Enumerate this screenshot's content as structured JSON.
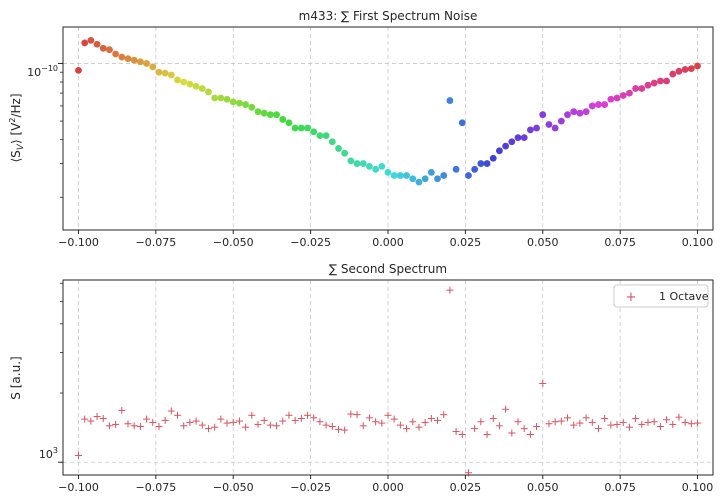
{
  "chart_data": [
    {
      "type": "scatter",
      "title": "m433: ∑ First Spectrum Noise",
      "xlabel": "",
      "ylabel": "⟨S_V⟩ [V²/Hz]",
      "ylabel_main": "⟨S",
      "ylabel_sub": "V",
      "ylabel_rest": "⟩ [V",
      "ylabel_sup": "2",
      "ylabel_end": "/Hz]",
      "yscale": "log",
      "xlim": [
        -0.105,
        0.105
      ],
      "ylim": [
        1.35e-11,
        1.55e-10
      ],
      "xticks": [
        -0.1,
        -0.075,
        -0.05,
        -0.025,
        0.0,
        0.025,
        0.05,
        0.075,
        0.1
      ],
      "xtick_labels": [
        "−0.100",
        "−0.075",
        "−0.050",
        "−0.025",
        "0.000",
        "0.025",
        "0.050",
        "0.075",
        "0.100"
      ],
      "ytick_major": {
        "value": 1e-10,
        "base": "10",
        "exponent": "−10"
      },
      "y_minor_ticks": [
        2e-11,
        3e-11,
        4e-11,
        5e-11,
        6e-11,
        7e-11,
        8e-11,
        9e-11
      ],
      "grid": true,
      "marker": "circle",
      "colormap": "hue rainbow by index (red → yellow → green → cyan → blue → magenta → red)",
      "x": [
        -0.1,
        -0.098,
        -0.096,
        -0.094,
        -0.092,
        -0.09,
        -0.088,
        -0.086,
        -0.084,
        -0.082,
        -0.08,
        -0.078,
        -0.076,
        -0.074,
        -0.072,
        -0.07,
        -0.068,
        -0.066,
        -0.064,
        -0.062,
        -0.06,
        -0.058,
        -0.056,
        -0.054,
        -0.052,
        -0.05,
        -0.048,
        -0.046,
        -0.044,
        -0.042,
        -0.04,
        -0.038,
        -0.036,
        -0.034,
        -0.032,
        -0.03,
        -0.028,
        -0.026,
        -0.024,
        -0.022,
        -0.02,
        -0.018,
        -0.016,
        -0.014,
        -0.012,
        -0.01,
        -0.008,
        -0.006,
        -0.004,
        -0.002,
        0.0,
        0.002,
        0.004,
        0.006,
        0.008,
        0.01,
        0.012,
        0.014,
        0.016,
        0.018,
        0.02,
        0.022,
        0.024,
        0.026,
        0.028,
        0.03,
        0.032,
        0.034,
        0.036,
        0.038,
        0.04,
        0.042,
        0.044,
        0.046,
        0.048,
        0.05,
        0.052,
        0.054,
        0.056,
        0.058,
        0.06,
        0.062,
        0.064,
        0.066,
        0.068,
        0.07,
        0.072,
        0.074,
        0.076,
        0.078,
        0.08,
        0.082,
        0.084,
        0.086,
        0.088,
        0.09,
        0.092,
        0.094,
        0.096,
        0.098,
        0.1
      ],
      "y": [
        9.2e-11,
        1.28e-10,
        1.32e-10,
        1.26e-10,
        1.2e-10,
        1.18e-10,
        1.12e-10,
        1.08e-10,
        1.06e-10,
        1.04e-10,
        1.02e-10,
        1e-10,
        9.6e-11,
        9e-11,
        8.9e-11,
        8.7e-11,
        8.2e-11,
        8e-11,
        7.8e-11,
        7.6e-11,
        7.4e-11,
        7.1e-11,
        6.6e-11,
        6.6e-11,
        6.5e-11,
        6.3e-11,
        6.2e-11,
        6.1e-11,
        5.9e-11,
        5.6e-11,
        5.5e-11,
        5.4e-11,
        5.4e-11,
        5.1e-11,
        4.9e-11,
        4.6e-11,
        4.6e-11,
        4.6e-11,
        4.4e-11,
        4.2e-11,
        4.2e-11,
        3.9e-11,
        3.6e-11,
        3.4e-11,
        3.1e-11,
        3e-11,
        3e-11,
        2.9e-11,
        2.8e-11,
        2.9e-11,
        2.7e-11,
        2.6e-11,
        2.6e-11,
        2.6e-11,
        2.5e-11,
        2.4e-11,
        2.5e-11,
        2.7e-11,
        2.5e-11,
        2.6e-11,
        6.4e-11,
        2.8e-11,
        4.9e-11,
        2.6e-11,
        2.8e-11,
        3e-11,
        3e-11,
        3.2e-11,
        3.5e-11,
        3.7e-11,
        3.9e-11,
        4.1e-11,
        4.1e-11,
        4.5e-11,
        4.6e-11,
        5.4e-11,
        4.8e-11,
        4.6e-11,
        5e-11,
        5.4e-11,
        5.6e-11,
        5.5e-11,
        5.6e-11,
        6e-11,
        6.1e-11,
        6.1e-11,
        6.5e-11,
        6.6e-11,
        6.8e-11,
        7e-11,
        7.4e-11,
        7.4e-11,
        7.7e-11,
        7.9e-11,
        8.1e-11,
        8.1e-11,
        8.8e-11,
        9.1e-11,
        9.3e-11,
        9.4e-11,
        9.7e-11
      ]
    },
    {
      "type": "scatter",
      "title": "∑ Second Spectrum",
      "xlabel": "",
      "ylabel": "S [a.u.]",
      "yscale": "log",
      "xlim": [
        -0.105,
        0.105
      ],
      "ylim": [
        880,
        6200
      ],
      "xticks": [
        -0.1,
        -0.075,
        -0.05,
        -0.025,
        0.0,
        0.025,
        0.05,
        0.075,
        0.1
      ],
      "xtick_labels": [
        "−0.100",
        "−0.075",
        "−0.050",
        "−0.025",
        "0.000",
        "0.025",
        "0.050",
        "0.075",
        "0.100"
      ],
      "ytick_major": {
        "value": 1000,
        "base": "10",
        "exponent": "3"
      },
      "y_minor_ticks": [
        2000,
        3000,
        4000,
        5000,
        6000
      ],
      "grid": true,
      "legend_position": "top-right",
      "series": [
        {
          "name": "1 Octave",
          "marker": "+",
          "color": "#d9535f",
          "x": [
            -0.1,
            -0.098,
            -0.096,
            -0.094,
            -0.092,
            -0.09,
            -0.088,
            -0.086,
            -0.084,
            -0.082,
            -0.08,
            -0.078,
            -0.076,
            -0.074,
            -0.072,
            -0.07,
            -0.068,
            -0.066,
            -0.064,
            -0.062,
            -0.06,
            -0.058,
            -0.056,
            -0.054,
            -0.052,
            -0.05,
            -0.048,
            -0.046,
            -0.044,
            -0.042,
            -0.04,
            -0.038,
            -0.036,
            -0.034,
            -0.032,
            -0.03,
            -0.028,
            -0.026,
            -0.024,
            -0.022,
            -0.02,
            -0.018,
            -0.016,
            -0.014,
            -0.012,
            -0.01,
            -0.008,
            -0.006,
            -0.004,
            -0.002,
            0.0,
            0.002,
            0.004,
            0.006,
            0.008,
            0.01,
            0.012,
            0.014,
            0.016,
            0.018,
            0.02,
            0.022,
            0.024,
            0.026,
            0.028,
            0.03,
            0.032,
            0.034,
            0.036,
            0.038,
            0.04,
            0.042,
            0.044,
            0.046,
            0.048,
            0.05,
            0.052,
            0.054,
            0.056,
            0.058,
            0.06,
            0.062,
            0.064,
            0.066,
            0.068,
            0.07,
            0.072,
            0.074,
            0.076,
            0.078,
            0.08,
            0.082,
            0.084,
            0.086,
            0.088,
            0.09,
            0.092,
            0.094,
            0.096,
            0.098,
            0.1
          ],
          "y": [
            1070,
            1540,
            1510,
            1580,
            1550,
            1440,
            1460,
            1680,
            1470,
            1440,
            1430,
            1540,
            1490,
            1430,
            1520,
            1670,
            1600,
            1440,
            1490,
            1510,
            1450,
            1400,
            1420,
            1540,
            1480,
            1490,
            1510,
            1420,
            1600,
            1460,
            1520,
            1450,
            1440,
            1510,
            1600,
            1520,
            1550,
            1600,
            1560,
            1500,
            1450,
            1430,
            1390,
            1380,
            1620,
            1610,
            1440,
            1560,
            1500,
            1480,
            1600,
            1540,
            1450,
            1400,
            1500,
            1420,
            1490,
            1550,
            1520,
            1610,
            5600,
            1360,
            1320,
            900,
            1400,
            1500,
            1320,
            1550,
            1440,
            1700,
            1340,
            1500,
            1400,
            1320,
            1430,
            2200,
            1470,
            1500,
            1510,
            1560,
            1450,
            1480,
            1560,
            1490,
            1400,
            1550,
            1450,
            1460,
            1490,
            1420,
            1550,
            1460,
            1490,
            1500,
            1430,
            1530,
            1460,
            1570,
            1490,
            1470,
            1480
          ]
        }
      ]
    }
  ]
}
